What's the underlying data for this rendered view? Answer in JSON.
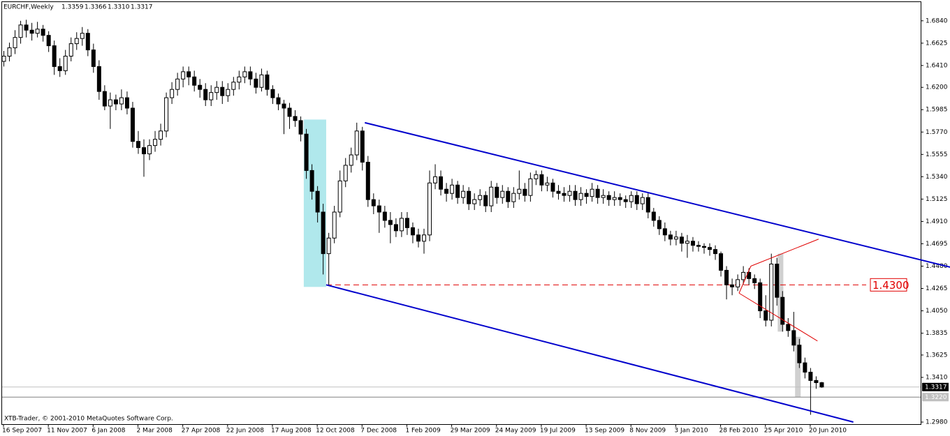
{
  "chart_data": {
    "type": "candlestick",
    "title": "EURCHF,Weekly",
    "last_labels": [
      "1.3359",
      "1.3366",
      "1.3310",
      "1.3317"
    ],
    "footer": "XTB-Trader, © 2001-2010 MetaQuotes Software Corp.",
    "up_color": "#ffffff",
    "down_color": "#000000",
    "outline_color": "#000000",
    "ylim": [
      1.296,
      1.702
    ],
    "yticks": [
      {
        "value": 1.684,
        "label": "1.6840"
      },
      {
        "value": 1.6625,
        "label": "1.6625"
      },
      {
        "value": 1.641,
        "label": "1.6410"
      },
      {
        "value": 1.62,
        "label": "1.6200"
      },
      {
        "value": 1.5985,
        "label": "1.5985"
      },
      {
        "value": 1.577,
        "label": "1.5770"
      },
      {
        "value": 1.5555,
        "label": "1.5555"
      },
      {
        "value": 1.534,
        "label": "1.5340"
      },
      {
        "value": 1.5125,
        "label": "1.5125"
      },
      {
        "value": 1.491,
        "label": "1.4910"
      },
      {
        "value": 1.4695,
        "label": "1.4695"
      },
      {
        "value": 1.448,
        "label": "1.4480"
      },
      {
        "value": 1.4265,
        "label": "1.4265"
      },
      {
        "value": 1.405,
        "label": "1.4050"
      },
      {
        "value": 1.3835,
        "label": "1.3835"
      },
      {
        "value": 1.3625,
        "label": "1.3625"
      },
      {
        "value": 1.341,
        "label": "1.3410"
      },
      {
        "value": 1.298,
        "label": "1.2980"
      }
    ],
    "current_line": {
      "value": 1.322,
      "label": "1.3220"
    },
    "level_line": {
      "value": 1.43,
      "label": "1.4300",
      "color": "#e00000"
    },
    "channel": {
      "color": "#0000cc",
      "lines": [
        [
          [
            64.5,
            1.586
          ],
          [
            169,
            1.447
          ]
        ],
        [
          [
            57.6,
            1.43
          ],
          [
            151.7,
            1.298
          ]
        ]
      ]
    },
    "triangle": {
      "color": "#e00000",
      "lines": [
        [
          [
            133.4,
            1.448
          ],
          [
            145.5,
            1.474
          ]
        ],
        [
          [
            131.3,
            1.422
          ],
          [
            145.3,
            1.376
          ]
        ],
        [
          [
            131.3,
            1.422
          ],
          [
            133.4,
            1.448
          ]
        ]
      ]
    },
    "zones": [
      {
        "color": "#b0e8ec",
        "x": [
          53.6,
          57.6
        ],
        "y": [
          1.428,
          1.589
        ]
      },
      {
        "color": "#d0d0d0",
        "x": [
          138.2,
          139.2
        ],
        "y": [
          1.385,
          1.46
        ]
      },
      {
        "color": "#d0d0d0",
        "x": [
          141.3,
          142.3
        ],
        "y": [
          1.322,
          1.38
        ]
      }
    ],
    "categories": [
      "16 Sep 2007",
      null,
      null,
      null,
      null,
      null,
      null,
      null,
      "11 Nov 2007",
      null,
      null,
      null,
      null,
      null,
      null,
      null,
      "6 Jan 2008",
      null,
      null,
      null,
      null,
      null,
      null,
      null,
      "2 Mar 2008",
      null,
      null,
      null,
      null,
      null,
      null,
      null,
      "27 Apr 2008",
      null,
      null,
      null,
      null,
      null,
      null,
      null,
      "22 Jun 2008",
      null,
      null,
      null,
      null,
      null,
      null,
      null,
      "17 Aug 2008",
      null,
      null,
      null,
      null,
      null,
      null,
      null,
      "12 Oct 2008",
      null,
      null,
      null,
      null,
      null,
      null,
      null,
      "7 Dec 2008",
      null,
      null,
      null,
      null,
      null,
      null,
      null,
      "1 Feb 2009",
      null,
      null,
      null,
      null,
      null,
      null,
      null,
      "29 Mar 2009",
      null,
      null,
      null,
      null,
      null,
      null,
      null,
      "24 May 2009",
      null,
      null,
      null,
      null,
      null,
      null,
      null,
      "19 Jul 2009",
      null,
      null,
      null,
      null,
      null,
      null,
      null,
      "13 Sep 2009",
      null,
      null,
      null,
      null,
      null,
      null,
      null,
      "8 Nov 2009",
      null,
      null,
      null,
      null,
      null,
      null,
      null,
      "3 Jan 2010",
      null,
      null,
      null,
      null,
      null,
      null,
      null,
      "28 Feb 2010",
      null,
      null,
      null,
      null,
      null,
      null,
      null,
      "25 Apr 2010",
      null,
      null,
      null,
      null,
      null,
      null,
      null,
      "20 Jun 2010",
      null,
      null
    ],
    "ohlc": [
      [
        1.645,
        1.655,
        1.64,
        1.65
      ],
      [
        1.65,
        1.663,
        1.645,
        1.658
      ],
      [
        1.658,
        1.675,
        1.652,
        1.668
      ],
      [
        1.668,
        1.684,
        1.662,
        1.68
      ],
      [
        1.68,
        1.685,
        1.668,
        1.675
      ],
      [
        1.675,
        1.682,
        1.665,
        1.672
      ],
      [
        1.672,
        1.683,
        1.668,
        1.676
      ],
      [
        1.676,
        1.68,
        1.664,
        1.67
      ],
      [
        1.67,
        1.674,
        1.654,
        1.66
      ],
      [
        1.66,
        1.665,
        1.632,
        1.64
      ],
      [
        1.64,
        1.648,
        1.63,
        1.636
      ],
      [
        1.636,
        1.656,
        1.632,
        1.65
      ],
      [
        1.65,
        1.668,
        1.645,
        1.662
      ],
      [
        1.662,
        1.673,
        1.656,
        1.667
      ],
      [
        1.667,
        1.678,
        1.66,
        1.672
      ],
      [
        1.672,
        1.676,
        1.65,
        1.656
      ],
      [
        1.656,
        1.662,
        1.634,
        1.64
      ],
      [
        1.64,
        1.646,
        1.608,
        1.616
      ],
      [
        1.616,
        1.622,
        1.598,
        1.602
      ],
      [
        1.602,
        1.615,
        1.58,
        1.608
      ],
      [
        1.608,
        1.613,
        1.598,
        1.604
      ],
      [
        1.604,
        1.618,
        1.598,
        1.61
      ],
      [
        1.61,
        1.616,
        1.594,
        1.6
      ],
      [
        1.6,
        1.606,
        1.562,
        1.568
      ],
      [
        1.568,
        1.578,
        1.556,
        1.562
      ],
      [
        1.562,
        1.57,
        1.534,
        1.556
      ],
      [
        1.556,
        1.57,
        1.55,
        1.564
      ],
      [
        1.564,
        1.578,
        1.558,
        1.57
      ],
      [
        1.57,
        1.585,
        1.564,
        1.578
      ],
      [
        1.578,
        1.615,
        1.572,
        1.61
      ],
      [
        1.61,
        1.625,
        1.604,
        1.618
      ],
      [
        1.618,
        1.634,
        1.612,
        1.628
      ],
      [
        1.628,
        1.64,
        1.62,
        1.635
      ],
      [
        1.635,
        1.64,
        1.622,
        1.63
      ],
      [
        1.63,
        1.636,
        1.616,
        1.622
      ],
      [
        1.622,
        1.628,
        1.61,
        1.618
      ],
      [
        1.618,
        1.624,
        1.602,
        1.608
      ],
      [
        1.608,
        1.622,
        1.602,
        1.615
      ],
      [
        1.615,
        1.626,
        1.608,
        1.62
      ],
      [
        1.62,
        1.626,
        1.604,
        1.612
      ],
      [
        1.612,
        1.624,
        1.606,
        1.618
      ],
      [
        1.618,
        1.63,
        1.612,
        1.625
      ],
      [
        1.625,
        1.636,
        1.618,
        1.63
      ],
      [
        1.63,
        1.64,
        1.624,
        1.635
      ],
      [
        1.635,
        1.64,
        1.622,
        1.628
      ],
      [
        1.628,
        1.634,
        1.614,
        1.62
      ],
      [
        1.62,
        1.638,
        1.616,
        1.632
      ],
      [
        1.632,
        1.636,
        1.612,
        1.618
      ],
      [
        1.618,
        1.622,
        1.604,
        1.61
      ],
      [
        1.61,
        1.614,
        1.598,
        1.604
      ],
      [
        1.604,
        1.608,
        1.575,
        1.6
      ],
      [
        1.6,
        1.605,
        1.58,
        1.592
      ],
      [
        1.592,
        1.598,
        1.582,
        1.588
      ],
      [
        1.588,
        1.592,
        1.568,
        1.575
      ],
      [
        1.575,
        1.58,
        1.532,
        1.54
      ],
      [
        1.54,
        1.546,
        1.512,
        1.52
      ],
      [
        1.52,
        1.525,
        1.49,
        1.5
      ],
      [
        1.5,
        1.508,
        1.44,
        1.46
      ],
      [
        1.46,
        1.48,
        1.43,
        1.475
      ],
      [
        1.475,
        1.506,
        1.47,
        1.5
      ],
      [
        1.5,
        1.54,
        1.495,
        1.53
      ],
      [
        1.53,
        1.552,
        1.524,
        1.545
      ],
      [
        1.545,
        1.562,
        1.538,
        1.555
      ],
      [
        1.555,
        1.586,
        1.55,
        1.578
      ],
      [
        1.578,
        1.582,
        1.54,
        1.548
      ],
      [
        1.548,
        1.554,
        1.505,
        1.512
      ],
      [
        1.512,
        1.518,
        1.498,
        1.506
      ],
      [
        1.506,
        1.512,
        1.48,
        1.5
      ],
      [
        1.5,
        1.506,
        1.485,
        1.492
      ],
      [
        1.492,
        1.5,
        1.47,
        1.488
      ],
      [
        1.488,
        1.494,
        1.476,
        1.482
      ],
      [
        1.482,
        1.5,
        1.476,
        1.494
      ],
      [
        1.494,
        1.5,
        1.478,
        1.485
      ],
      [
        1.485,
        1.49,
        1.47,
        1.478
      ],
      [
        1.478,
        1.484,
        1.466,
        1.472
      ],
      [
        1.472,
        1.484,
        1.46,
        1.478
      ],
      [
        1.478,
        1.54,
        1.472,
        1.528
      ],
      [
        1.528,
        1.546,
        1.522,
        1.534
      ],
      [
        1.534,
        1.54,
        1.516,
        1.522
      ],
      [
        1.522,
        1.528,
        1.51,
        1.518
      ],
      [
        1.518,
        1.532,
        1.512,
        1.526
      ],
      [
        1.526,
        1.53,
        1.508,
        1.514
      ],
      [
        1.514,
        1.526,
        1.508,
        1.52
      ],
      [
        1.52,
        1.524,
        1.502,
        1.508
      ],
      [
        1.508,
        1.518,
        1.502,
        1.512
      ],
      [
        1.512,
        1.522,
        1.506,
        1.516
      ],
      [
        1.516,
        1.52,
        1.5,
        1.506
      ],
      [
        1.506,
        1.53,
        1.5,
        1.524
      ],
      [
        1.524,
        1.528,
        1.508,
        1.514
      ],
      [
        1.514,
        1.526,
        1.508,
        1.52
      ],
      [
        1.52,
        1.524,
        1.504,
        1.51
      ],
      [
        1.51,
        1.524,
        1.504,
        1.518
      ],
      [
        1.518,
        1.54,
        1.512,
        1.522
      ],
      [
        1.522,
        1.528,
        1.51,
        1.516
      ],
      [
        1.516,
        1.538,
        1.51,
        1.532
      ],
      [
        1.532,
        1.54,
        1.526,
        1.536
      ],
      [
        1.536,
        1.54,
        1.52,
        1.526
      ],
      [
        1.526,
        1.534,
        1.52,
        1.528
      ],
      [
        1.528,
        1.532,
        1.514,
        1.52
      ],
      [
        1.52,
        1.526,
        1.512,
        1.518
      ],
      [
        1.518,
        1.524,
        1.51,
        1.516
      ],
      [
        1.516,
        1.526,
        1.51,
        1.52
      ],
      [
        1.52,
        1.526,
        1.506,
        1.512
      ],
      [
        1.512,
        1.524,
        1.506,
        1.518
      ],
      [
        1.518,
        1.522,
        1.508,
        1.515
      ],
      [
        1.515,
        1.528,
        1.51,
        1.522
      ],
      [
        1.522,
        1.526,
        1.508,
        1.514
      ],
      [
        1.514,
        1.522,
        1.508,
        1.516
      ],
      [
        1.516,
        1.52,
        1.506,
        1.512
      ],
      [
        1.512,
        1.52,
        1.506,
        1.514
      ],
      [
        1.514,
        1.518,
        1.506,
        1.512
      ],
      [
        1.512,
        1.516,
        1.504,
        1.51
      ],
      [
        1.51,
        1.52,
        1.504,
        1.516
      ],
      [
        1.516,
        1.52,
        1.502,
        1.508
      ],
      [
        1.508,
        1.518,
        1.502,
        1.514
      ],
      [
        1.514,
        1.518,
        1.494,
        1.5
      ],
      [
        1.5,
        1.504,
        1.486,
        1.492
      ],
      [
        1.492,
        1.496,
        1.478,
        1.484
      ],
      [
        1.484,
        1.49,
        1.472,
        1.478
      ],
      [
        1.478,
        1.482,
        1.468,
        1.474
      ],
      [
        1.474,
        1.482,
        1.468,
        1.476
      ],
      [
        1.476,
        1.48,
        1.462,
        1.47
      ],
      [
        1.47,
        1.478,
        1.456,
        1.472
      ],
      [
        1.472,
        1.476,
        1.462,
        1.468
      ],
      [
        1.468,
        1.472,
        1.462,
        1.467
      ],
      [
        1.467,
        1.47,
        1.46,
        1.466
      ],
      [
        1.466,
        1.47,
        1.458,
        1.464
      ],
      [
        1.464,
        1.468,
        1.454,
        1.46
      ],
      [
        1.46,
        1.462,
        1.438,
        1.444
      ],
      [
        1.444,
        1.448,
        1.416,
        1.43
      ],
      [
        1.43,
        1.436,
        1.42,
        1.428
      ],
      [
        1.428,
        1.44,
        1.424,
        1.435
      ],
      [
        1.435,
        1.448,
        1.43,
        1.442
      ],
      [
        1.442,
        1.446,
        1.43,
        1.436
      ],
      [
        1.436,
        1.44,
        1.426,
        1.432
      ],
      [
        1.432,
        1.436,
        1.398,
        1.405
      ],
      [
        1.405,
        1.42,
        1.39,
        1.396
      ],
      [
        1.396,
        1.46,
        1.39,
        1.45
      ],
      [
        1.45,
        1.456,
        1.41,
        1.418
      ],
      [
        1.418,
        1.424,
        1.385,
        1.392
      ],
      [
        1.392,
        1.398,
        1.38,
        1.386
      ],
      [
        1.386,
        1.404,
        1.366,
        1.372
      ],
      [
        1.372,
        1.378,
        1.35,
        1.355
      ],
      [
        1.355,
        1.36,
        1.34,
        1.346
      ],
      [
        1.346,
        1.35,
        1.305,
        1.338
      ],
      [
        1.338,
        1.342,
        1.33,
        1.3359
      ],
      [
        1.3359,
        1.3366,
        1.331,
        1.3317
      ]
    ]
  }
}
